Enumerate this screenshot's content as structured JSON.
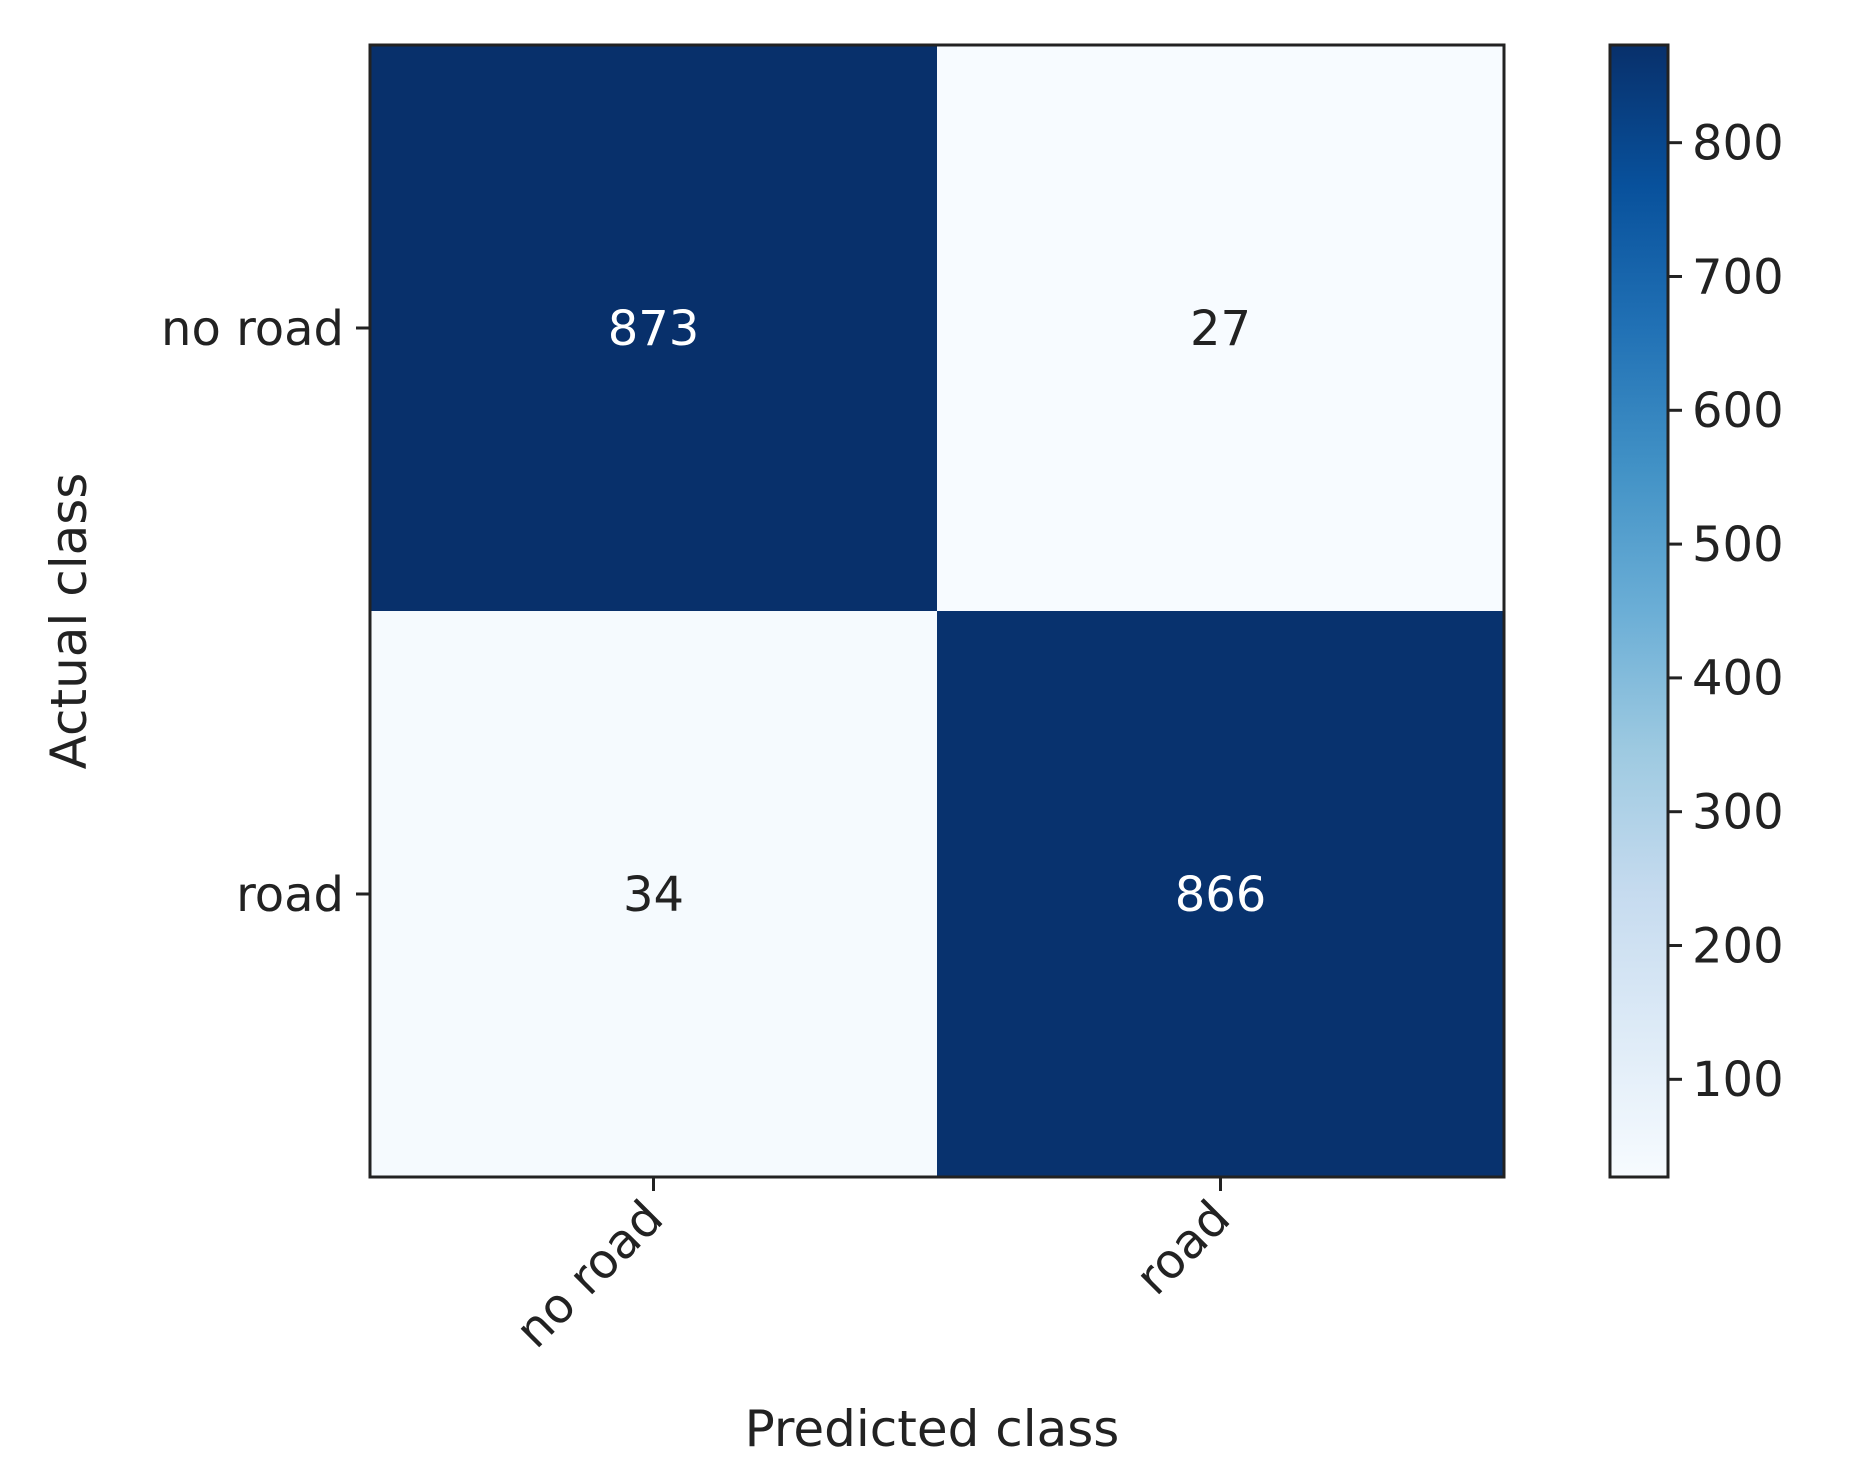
{
  "chart_data": {
    "type": "heatmap",
    "title": "",
    "xlabel": "Predicted class",
    "ylabel": "Actual class",
    "x_categories": [
      "no road",
      "road"
    ],
    "y_categories": [
      "no road",
      "road"
    ],
    "values": [
      [
        873,
        27
      ],
      [
        34,
        866
      ]
    ],
    "colormap": "Blues",
    "colorbar": {
      "range": [
        27,
        873
      ],
      "ticks": [
        100,
        200,
        300,
        400,
        500,
        600,
        700,
        800
      ],
      "tick_labels": [
        "100",
        "200",
        "300",
        "400",
        "500",
        "600",
        "700",
        "800"
      ]
    },
    "grid": false,
    "x_tick_rotation_deg": 45
  }
}
